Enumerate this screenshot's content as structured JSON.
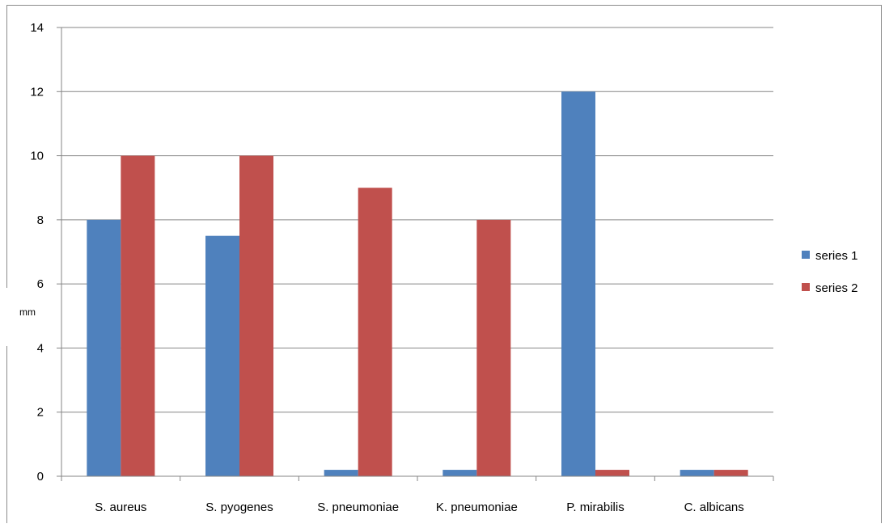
{
  "chart_data": {
    "type": "bar",
    "categories": [
      "S. aureus",
      "S. pyogenes",
      "S. pneumoniae",
      "K. pneumoniae",
      "P. mirabilis",
      "C. albicans"
    ],
    "series": [
      {
        "name": "series 1",
        "color": "#4f81bd",
        "values": [
          8,
          7.5,
          0.2,
          0.2,
          12,
          0.2
        ]
      },
      {
        "name": "series 2",
        "color": "#c0504d",
        "values": [
          10,
          10,
          9,
          8,
          0.2,
          0.2
        ]
      }
    ],
    "title": "",
    "xlabel": "",
    "ylabel": "mm",
    "ylim": [
      0,
      14
    ],
    "yticks": [
      0,
      2,
      4,
      6,
      8,
      10,
      12,
      14
    ],
    "grid": true,
    "legend": "right"
  }
}
